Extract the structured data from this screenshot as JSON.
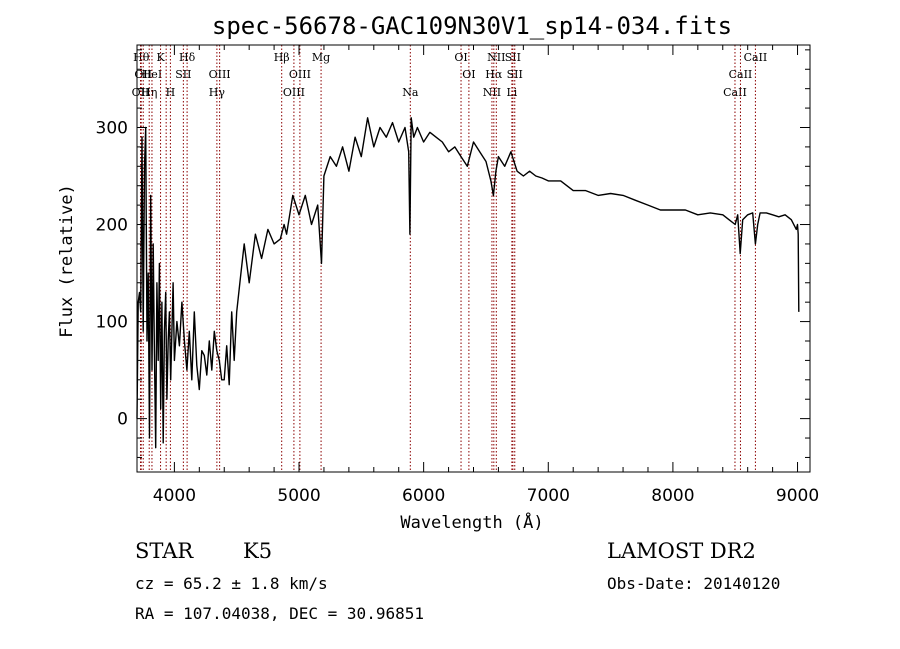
{
  "chart_data": {
    "type": "line",
    "title": "spec-56678-GAC109N30V1_sp14-034.fits",
    "xlabel": "Wavelength (Å)",
    "ylabel": "Flux (relative)",
    "xlim": [
      3700,
      9100
    ],
    "ylim": [
      -55,
      385
    ],
    "xticks": [
      4000,
      5000,
      6000,
      7000,
      8000,
      9000
    ],
    "yticks": [
      0,
      100,
      200,
      300
    ],
    "grid": false,
    "series": [
      {
        "line_color": "#000000",
        "x": [
          3700,
          3710,
          3720,
          3730,
          3740,
          3750,
          3760,
          3770,
          3780,
          3790,
          3800,
          3810,
          3820,
          3830,
          3840,
          3850,
          3860,
          3870,
          3880,
          3890,
          3900,
          3910,
          3920,
          3930,
          3940,
          3950,
          3960,
          3970,
          3980,
          3990,
          4000,
          4020,
          4040,
          4060,
          4080,
          4100,
          4120,
          4140,
          4160,
          4180,
          4200,
          4220,
          4240,
          4260,
          4280,
          4300,
          4320,
          4340,
          4360,
          4380,
          4400,
          4420,
          4440,
          4460,
          4480,
          4500,
          4530,
          4560,
          4600,
          4650,
          4700,
          4750,
          4800,
          4850,
          4880,
          4900,
          4950,
          5000,
          5050,
          5100,
          5150,
          5180,
          5200,
          5250,
          5300,
          5350,
          5400,
          5450,
          5500,
          5550,
          5600,
          5650,
          5700,
          5750,
          5800,
          5850,
          5880,
          5890,
          5900,
          5920,
          5950,
          6000,
          6050,
          6100,
          6150,
          6200,
          6250,
          6300,
          6350,
          6400,
          6450,
          6500,
          6540,
          6560,
          6580,
          6600,
          6650,
          6700,
          6750,
          6800,
          6850,
          6900,
          6950,
          7000,
          7100,
          7200,
          7300,
          7400,
          7500,
          7600,
          7700,
          7800,
          7900,
          8000,
          8100,
          8200,
          8300,
          8400,
          8450,
          8500,
          8520,
          8540,
          8560,
          8600,
          8640,
          8662,
          8680,
          8700,
          8750,
          8800,
          8850,
          8900,
          8950,
          8990,
          9000,
          9005,
          9010
        ],
        "y": [
          0,
          120,
          130,
          110,
          290,
          90,
          260,
          300,
          80,
          150,
          -20,
          230,
          50,
          180,
          70,
          -30,
          140,
          60,
          160,
          10,
          120,
          -25,
          90,
          130,
          20,
          80,
          110,
          40,
          90,
          140,
          60,
          100,
          75,
          120,
          80,
          50,
          90,
          40,
          110,
          55,
          30,
          70,
          65,
          45,
          80,
          50,
          90,
          70,
          60,
          40,
          40,
          75,
          35,
          110,
          60,
          110,
          145,
          180,
          140,
          190,
          165,
          195,
          180,
          185,
          200,
          190,
          230,
          210,
          230,
          200,
          220,
          160,
          250,
          270,
          260,
          280,
          255,
          290,
          270,
          310,
          280,
          300,
          290,
          305,
          285,
          300,
          275,
          190,
          310,
          290,
          300,
          285,
          295,
          290,
          285,
          275,
          280,
          270,
          260,
          285,
          275,
          265,
          245,
          230,
          255,
          270,
          260,
          275,
          255,
          250,
          255,
          250,
          248,
          245,
          245,
          235,
          235,
          230,
          232,
          230,
          225,
          220,
          215,
          215,
          215,
          210,
          212,
          210,
          205,
          200,
          210,
          170,
          205,
          210,
          212,
          180,
          200,
          212,
          212,
          210,
          208,
          210,
          205,
          195,
          200,
          190,
          110
        ],
        "stroke_width": 1.4
      }
    ],
    "lines": [
      {
        "wl": 3734,
        "label": "Hθ",
        "row": 1,
        "color": "#8b0000"
      },
      {
        "wl": 3750,
        "label": "OII",
        "row": 2,
        "color": "#8b0000"
      },
      {
        "wl": 3728,
        "label": "OII",
        "row": 3,
        "color": "#8b0000"
      },
      {
        "wl": 3798,
        "label": "Hη",
        "row": 3,
        "color": "#8b0000"
      },
      {
        "wl": 3820,
        "label": "HeI",
        "row": 2,
        "color": "#8b0000"
      },
      {
        "wl": 3889,
        "label": "K",
        "row": 1,
        "color": "#8b0000"
      },
      {
        "wl": 3934,
        "label": "",
        "row": 0,
        "color": "#8b0000"
      },
      {
        "wl": 3968,
        "label": "H",
        "row": 3,
        "color": "#8b0000"
      },
      {
        "wl": 4072,
        "label": "SII",
        "row": 2,
        "color": "#8b0000"
      },
      {
        "wl": 4102,
        "label": "Hδ",
        "row": 1,
        "color": "#8b0000"
      },
      {
        "wl": 4341,
        "label": "Hγ",
        "row": 3,
        "color": "#8b0000"
      },
      {
        "wl": 4363,
        "label": "OIII",
        "row": 2,
        "color": "#8b0000"
      },
      {
        "wl": 4861,
        "label": "Hβ",
        "row": 1,
        "color": "#8b0000"
      },
      {
        "wl": 4959,
        "label": "OIII",
        "row": 3,
        "color": "#8b0000"
      },
      {
        "wl": 5007,
        "label": "OIII",
        "row": 2,
        "color": "#8b0000"
      },
      {
        "wl": 5177,
        "label": "Mg",
        "row": 1,
        "color": "#8b0000"
      },
      {
        "wl": 5893,
        "label": "Na",
        "row": 3,
        "color": "#8b0000"
      },
      {
        "wl": 6300,
        "label": "OI",
        "row": 1,
        "color": "#8b0000"
      },
      {
        "wl": 6363,
        "label": "OI",
        "row": 2,
        "color": "#8b0000"
      },
      {
        "wl": 6548,
        "label": "NII",
        "row": 3,
        "color": "#8b0000"
      },
      {
        "wl": 6563,
        "label": "Hα",
        "row": 2,
        "color": "#8b0000"
      },
      {
        "wl": 6583,
        "label": "NII",
        "row": 1,
        "color": "#8b0000"
      },
      {
        "wl": 6708,
        "label": "Li",
        "row": 3,
        "color": "#8b0000"
      },
      {
        "wl": 6716,
        "label": "SII",
        "row": 1,
        "color": "#8b0000"
      },
      {
        "wl": 6731,
        "label": "SII",
        "row": 2,
        "color": "#8b0000"
      },
      {
        "wl": 8498,
        "label": "CaII",
        "row": 3,
        "color": "#8b0000"
      },
      {
        "wl": 8542,
        "label": "CaII",
        "row": 2,
        "color": "#8b0000"
      },
      {
        "wl": 8662,
        "label": "CaII",
        "row": 1,
        "color": "#8b0000"
      }
    ]
  },
  "info": {
    "object_class": "STAR",
    "subclass": "K5",
    "survey": "LAMOST DR2",
    "redshift_text": "cz = 65.2 ± 1.8 km/s",
    "obs_date_text": "Obs-Date: 20140120",
    "coords_text": "RA = 107.04038, DEC =  30.96851"
  }
}
